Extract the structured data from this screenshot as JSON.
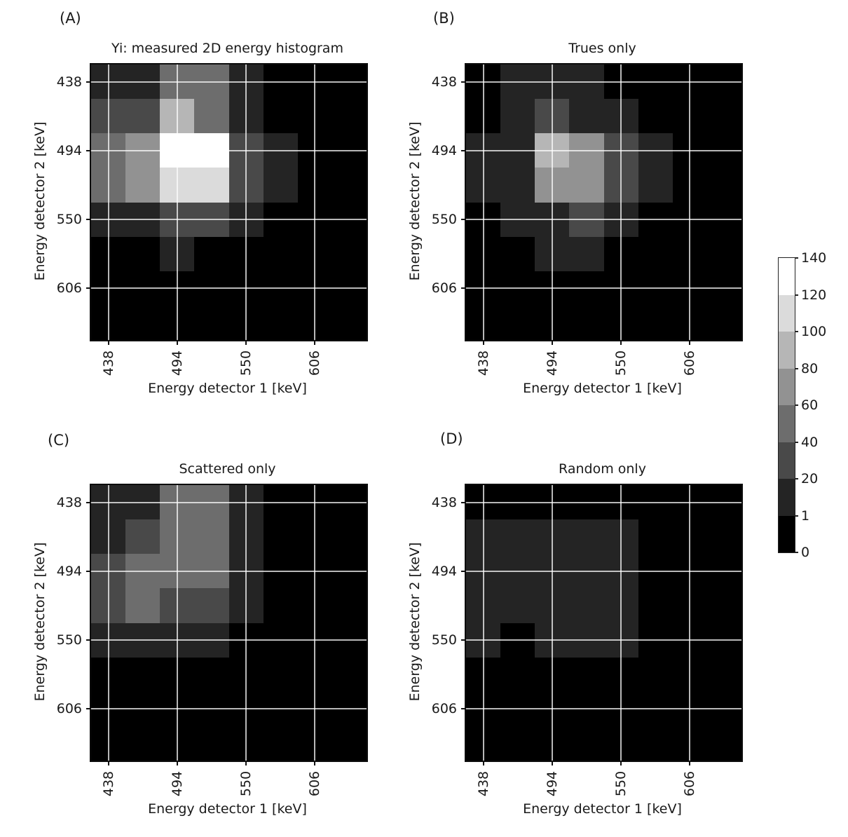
{
  "figure": {
    "background": "#ffffff",
    "text_color": "#1a1a1a"
  },
  "colormap": {
    "boundaries": [
      0,
      1,
      20,
      40,
      60,
      80,
      100,
      120,
      140
    ],
    "colors": [
      "#000000",
      "#242424",
      "#494949",
      "#6d6d6d",
      "#929292",
      "#b6b6b6",
      "#dbdbdb",
      "#ffffff"
    ]
  },
  "colorbar": {
    "tick_labels": [
      "0",
      "1",
      "20",
      "40",
      "60",
      "80",
      "100",
      "120",
      "140"
    ]
  },
  "chart_data": [
    {
      "type": "heatmap",
      "panel_label": "(A)",
      "title": "Yi: measured 2D energy histogram",
      "xlabel": "Energy detector 1 [keV]",
      "ylabel": "Energy detector 2 [keV]",
      "x_ticks": [
        "438",
        "494",
        "550",
        "606"
      ],
      "y_ticks": [
        "438",
        "494",
        "550",
        "606"
      ],
      "x_bin_centers": [
        438,
        466,
        494,
        522,
        550,
        578,
        606,
        634
      ],
      "y_bin_centers": [
        438,
        466,
        494,
        522,
        550,
        578,
        606,
        634
      ],
      "grid": true,
      "values": [
        [
          10,
          10,
          50,
          50,
          10,
          0,
          0,
          0
        ],
        [
          30,
          30,
          90,
          50,
          10,
          0,
          0,
          0
        ],
        [
          50,
          70,
          130,
          130,
          30,
          10,
          0,
          0
        ],
        [
          50,
          70,
          110,
          110,
          30,
          10,
          0,
          0
        ],
        [
          10,
          10,
          30,
          30,
          10,
          0,
          0,
          0
        ],
        [
          0,
          0,
          10,
          0,
          0,
          0,
          0,
          0
        ],
        [
          0,
          0,
          0,
          0,
          0,
          0,
          0,
          0
        ],
        [
          0,
          0,
          0,
          0,
          0,
          0,
          0,
          0
        ]
      ]
    },
    {
      "type": "heatmap",
      "panel_label": "(B)",
      "title": "Trues only",
      "xlabel": "Energy detector 1 [keV]",
      "ylabel": "Energy detector 2 [keV]",
      "x_ticks": [
        "438",
        "494",
        "550",
        "606"
      ],
      "y_ticks": [
        "438",
        "494",
        "550",
        "606"
      ],
      "x_bin_centers": [
        438,
        466,
        494,
        522,
        550,
        578,
        606,
        634
      ],
      "y_bin_centers": [
        438,
        466,
        494,
        522,
        550,
        578,
        606,
        634
      ],
      "grid": true,
      "values": [
        [
          0,
          10,
          10,
          10,
          0,
          0,
          0,
          0
        ],
        [
          0,
          10,
          30,
          10,
          10,
          0,
          0,
          0
        ],
        [
          10,
          10,
          90,
          70,
          30,
          10,
          0,
          0
        ],
        [
          10,
          10,
          70,
          70,
          30,
          10,
          0,
          0
        ],
        [
          0,
          10,
          10,
          30,
          10,
          0,
          0,
          0
        ],
        [
          0,
          0,
          10,
          10,
          0,
          0,
          0,
          0
        ],
        [
          0,
          0,
          0,
          0,
          0,
          0,
          0,
          0
        ],
        [
          0,
          0,
          0,
          0,
          0,
          0,
          0,
          0
        ]
      ]
    },
    {
      "type": "heatmap",
      "panel_label": "(C)",
      "title": "Scattered only",
      "xlabel": "Energy detector 1 [keV]",
      "ylabel": "Energy detector 2 [keV]",
      "x_ticks": [
        "438",
        "494",
        "550",
        "606"
      ],
      "y_ticks": [
        "438",
        "494",
        "550",
        "606"
      ],
      "x_bin_centers": [
        438,
        466,
        494,
        522,
        550,
        578,
        606,
        634
      ],
      "y_bin_centers": [
        438,
        466,
        494,
        522,
        550,
        578,
        606,
        634
      ],
      "grid": true,
      "values": [
        [
          10,
          10,
          50,
          50,
          10,
          0,
          0,
          0
        ],
        [
          10,
          30,
          50,
          50,
          10,
          0,
          0,
          0
        ],
        [
          30,
          50,
          50,
          50,
          10,
          0,
          0,
          0
        ],
        [
          30,
          50,
          30,
          30,
          10,
          0,
          0,
          0
        ],
        [
          10,
          10,
          10,
          10,
          0,
          0,
          0,
          0
        ],
        [
          0,
          0,
          0,
          0,
          0,
          0,
          0,
          0
        ],
        [
          0,
          0,
          0,
          0,
          0,
          0,
          0,
          0
        ],
        [
          0,
          0,
          0,
          0,
          0,
          0,
          0,
          0
        ]
      ]
    },
    {
      "type": "heatmap",
      "panel_label": "(D)",
      "title": "Random only",
      "xlabel": "Energy detector 1 [keV]",
      "ylabel": "Energy detector 2 [keV]",
      "x_ticks": [
        "438",
        "494",
        "550",
        "606"
      ],
      "y_ticks": [
        "438",
        "494",
        "550",
        "606"
      ],
      "x_bin_centers": [
        438,
        466,
        494,
        522,
        550,
        578,
        606,
        634
      ],
      "y_bin_centers": [
        438,
        466,
        494,
        522,
        550,
        578,
        606,
        634
      ],
      "grid": true,
      "values": [
        [
          0,
          0,
          0,
          0,
          0,
          0,
          0,
          0
        ],
        [
          10,
          10,
          10,
          10,
          10,
          0,
          0,
          0
        ],
        [
          10,
          10,
          10,
          10,
          10,
          0,
          0,
          0
        ],
        [
          10,
          10,
          10,
          10,
          10,
          0,
          0,
          0
        ],
        [
          10,
          0,
          10,
          10,
          10,
          0,
          0,
          0
        ],
        [
          0,
          0,
          0,
          0,
          0,
          0,
          0,
          0
        ],
        [
          0,
          0,
          0,
          0,
          0,
          0,
          0,
          0
        ],
        [
          0,
          0,
          0,
          0,
          0,
          0,
          0,
          0
        ]
      ]
    }
  ]
}
